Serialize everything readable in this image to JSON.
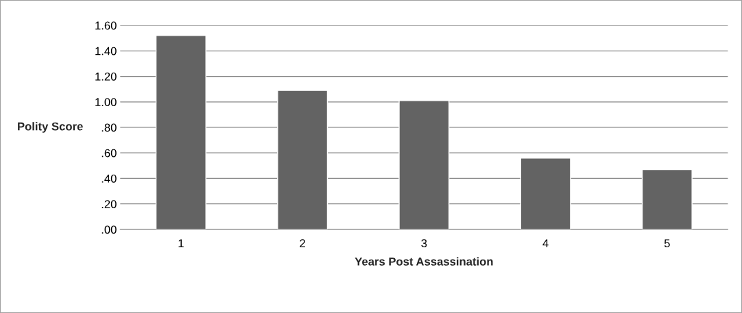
{
  "chart_data": {
    "type": "bar",
    "xlabel": "Years Post Assassination",
    "ylabel": "Polity Score",
    "categories": [
      "1",
      "2",
      "3",
      "4",
      "5"
    ],
    "values": [
      1.52,
      1.09,
      1.01,
      0.56,
      0.47
    ],
    "color": "#636363",
    "ylim": [
      0,
      1.6
    ],
    "yticks": [
      {
        "value": 0,
        "label": ".00"
      },
      {
        "value": 0.2,
        "label": ".20"
      },
      {
        "value": 0.4,
        "label": ".40"
      },
      {
        "value": 0.6,
        "label": ".60"
      },
      {
        "value": 0.8,
        "label": ".80"
      },
      {
        "value": 1.0,
        "label": "1.00"
      },
      {
        "value": 1.2,
        "label": "1.20"
      },
      {
        "value": 1.4,
        "label": "1.40"
      },
      {
        "value": 1.6,
        "label": "1.60"
      }
    ],
    "grid": "y",
    "legend": false
  }
}
